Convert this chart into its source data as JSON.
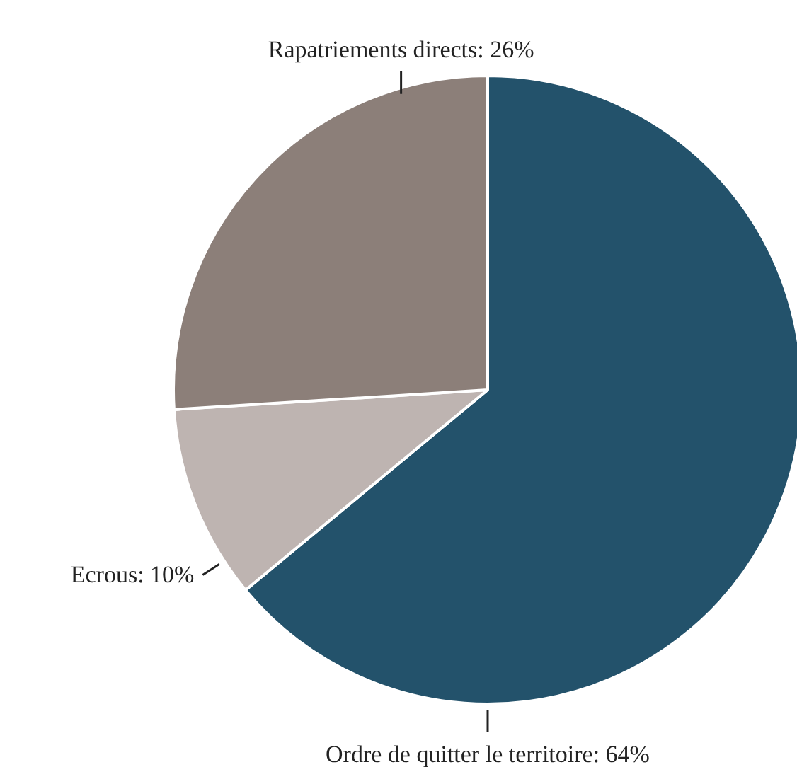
{
  "chart_data": {
    "type": "pie",
    "categories": [
      "Ordre de quitter le territoire",
      "Ecrous",
      "Rapatriements directs"
    ],
    "values": [
      64,
      10,
      26
    ],
    "colors": [
      "#23526b",
      "#beb4b1",
      "#8c7f79"
    ],
    "value_labels": [
      "64%",
      "10%",
      "26%"
    ]
  }
}
